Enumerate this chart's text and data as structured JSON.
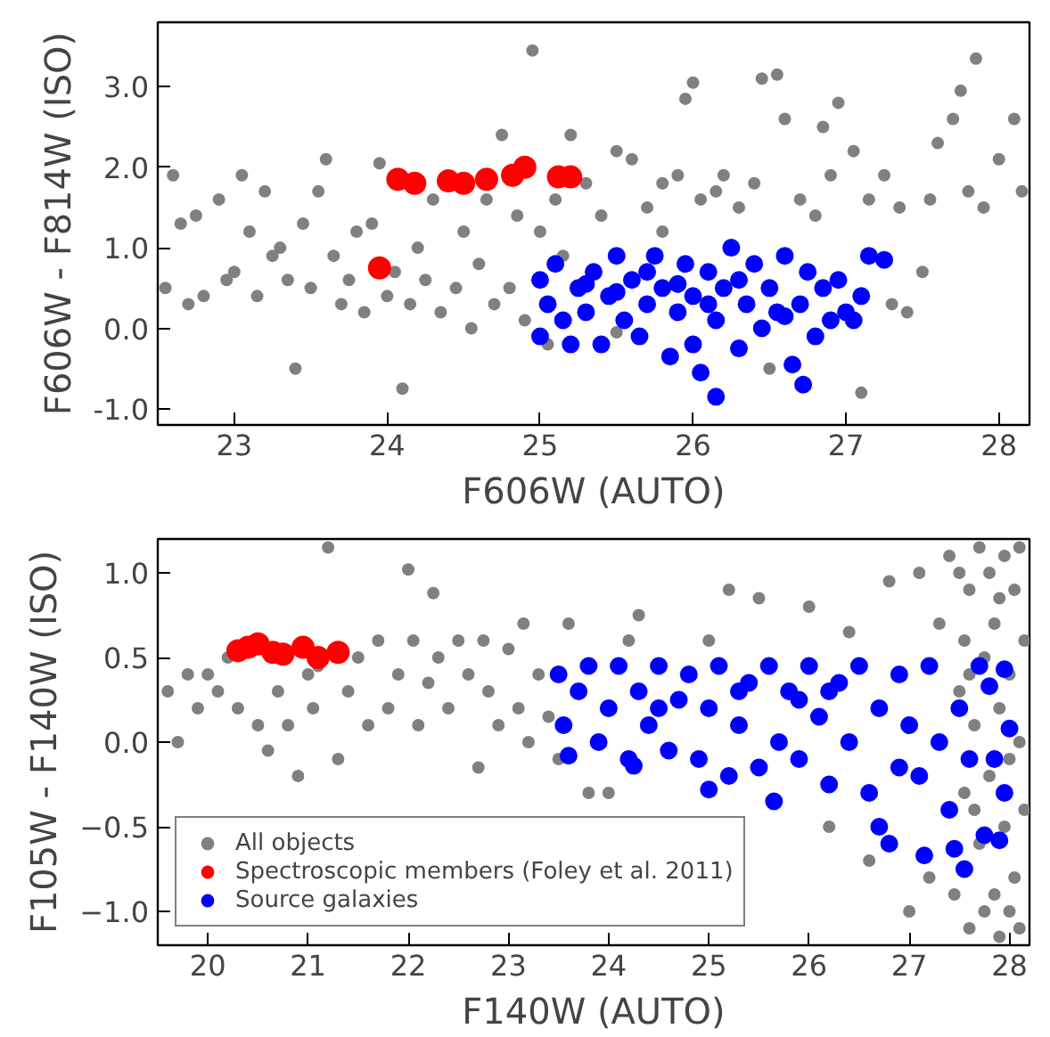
{
  "chart_data": [
    {
      "type": "scatter",
      "xlabel": "F606W (AUTO)",
      "ylabel": "F606W - F814W (ISO)",
      "xlim": [
        22.5,
        28.2
      ],
      "ylim": [
        -1.2,
        3.8
      ],
      "xticks": [
        23,
        24,
        25,
        26,
        27,
        28
      ],
      "yticks": [
        {
          "value": -1,
          "label": "-1.0"
        },
        {
          "value": 0,
          "label": "0.0"
        },
        {
          "value": 1,
          "label": "1.0"
        },
        {
          "value": 2,
          "label": "2.0"
        },
        {
          "value": 3,
          "label": "3.0"
        }
      ],
      "grid": false,
      "legend": false,
      "marker": "circle",
      "series": [
        {
          "color": "#808080",
          "x": [
            22.55,
            22.6,
            22.65,
            22.7,
            22.75,
            22.8,
            22.9,
            22.95,
            23.0,
            23.05,
            23.1,
            23.15,
            23.2,
            23.25,
            23.3,
            23.35,
            23.4,
            23.45,
            23.5,
            23.55,
            23.6,
            23.65,
            23.7,
            23.75,
            23.8,
            23.85,
            23.9,
            23.95,
            24.0,
            24.05,
            24.1,
            24.15,
            24.2,
            24.25,
            24.3,
            24.35,
            24.45,
            24.5,
            24.55,
            24.6,
            24.65,
            24.7,
            24.75,
            24.8,
            24.85,
            24.9,
            24.95,
            25.0,
            25.05,
            25.1,
            25.15,
            25.2,
            25.3,
            25.4,
            25.5,
            25.6,
            25.7,
            25.8,
            25.9,
            25.95,
            26.0,
            26.05,
            26.15,
            26.2,
            26.3,
            26.4,
            26.45,
            26.55,
            26.6,
            26.7,
            26.8,
            26.85,
            26.9,
            26.95,
            27.05,
            27.1,
            27.15,
            27.25,
            27.3,
            27.35,
            27.4,
            27.5,
            27.55,
            27.6,
            27.7,
            27.75,
            27.8,
            27.85,
            27.9,
            28.0,
            28.1,
            28.15,
            26.5,
            25.5,
            25.8
          ],
          "values": [
            0.5,
            1.9,
            1.3,
            0.3,
            1.4,
            0.4,
            1.6,
            0.6,
            0.7,
            1.9,
            1.2,
            0.4,
            1.7,
            0.9,
            1.0,
            0.6,
            -0.5,
            1.3,
            0.5,
            1.7,
            2.1,
            0.9,
            0.3,
            0.6,
            1.2,
            0.2,
            1.3,
            2.05,
            0.4,
            0.7,
            -0.75,
            0.3,
            1.0,
            0.6,
            1.6,
            0.2,
            0.5,
            1.2,
            0.0,
            0.8,
            1.6,
            0.3,
            2.4,
            0.5,
            1.4,
            0.1,
            3.45,
            1.2,
            -0.2,
            1.6,
            0.9,
            2.4,
            1.8,
            1.4,
            2.2,
            2.1,
            1.5,
            1.8,
            1.9,
            2.85,
            3.05,
            1.6,
            1.7,
            1.9,
            1.5,
            1.8,
            3.1,
            3.15,
            2.6,
            1.6,
            1.4,
            2.5,
            1.9,
            2.8,
            2.2,
            -0.8,
            1.6,
            1.9,
            0.3,
            1.5,
            0.2,
            0.7,
            1.6,
            2.3,
            2.6,
            2.95,
            1.7,
            3.35,
            1.5,
            2.1,
            2.6,
            1.7,
            -0.5,
            -0.05,
            1.2
          ]
        },
        {
          "color": "#0000ff",
          "x": [
            25.0,
            25.0,
            25.05,
            25.1,
            25.15,
            25.2,
            25.25,
            25.3,
            25.35,
            25.4,
            25.45,
            25.5,
            25.55,
            25.6,
            25.65,
            25.7,
            25.75,
            25.8,
            25.85,
            25.9,
            25.95,
            26.0,
            26.0,
            26.05,
            26.1,
            26.15,
            26.15,
            26.2,
            26.25,
            26.3,
            26.35,
            26.4,
            26.45,
            26.5,
            26.55,
            26.6,
            26.65,
            26.7,
            26.72,
            26.75,
            26.8,
            26.85,
            26.9,
            26.95,
            27.0,
            27.05,
            27.1,
            27.15,
            27.25,
            25.5,
            25.9,
            26.3,
            26.1,
            25.3,
            26.6,
            25.7
          ],
          "values": [
            0.6,
            -0.1,
            0.3,
            0.8,
            0.1,
            -0.2,
            0.5,
            0.2,
            0.7,
            -0.2,
            0.4,
            0.9,
            0.1,
            0.6,
            -0.1,
            0.3,
            0.9,
            0.5,
            -0.35,
            0.2,
            0.8,
            0.4,
            -0.2,
            -0.55,
            0.7,
            0.1,
            -0.85,
            0.5,
            1.0,
            -0.25,
            0.3,
            0.8,
            0.0,
            0.5,
            0.2,
            0.9,
            -0.45,
            0.3,
            -0.7,
            0.7,
            -0.1,
            0.5,
            0.1,
            0.6,
            0.2,
            0.1,
            0.4,
            0.9,
            0.85,
            0.45,
            0.55,
            0.6,
            0.3,
            0.55,
            0.15,
            0.7
          ]
        },
        {
          "color": "#ff0000",
          "x": [
            23.95,
            24.07,
            24.18,
            24.4,
            24.5,
            24.65,
            24.82,
            24.9,
            25.12,
            25.2
          ],
          "values": [
            0.75,
            1.85,
            1.8,
            1.83,
            1.8,
            1.85,
            1.9,
            2.0,
            1.88,
            1.88
          ]
        }
      ]
    },
    {
      "type": "scatter",
      "xlabel": "F140W (AUTO)",
      "ylabel": "F105W - F140W (ISO)",
      "xlim": [
        19.5,
        28.2
      ],
      "ylim": [
        -1.2,
        1.2
      ],
      "xticks": [
        20,
        21,
        22,
        23,
        24,
        25,
        26,
        27,
        28
      ],
      "yticks": [
        {
          "value": -1,
          "label": "−1.0"
        },
        {
          "value": -0.5,
          "label": "−0.5"
        },
        {
          "value": 0,
          "label": "0.0"
        },
        {
          "value": 0.5,
          "label": "0.5"
        },
        {
          "value": 1,
          "label": "1.0"
        }
      ],
      "grid": false,
      "legend": "bottom left",
      "marker": "circle",
      "series": [
        {
          "name": "All objects",
          "color": "#808080",
          "x": [
            19.6,
            19.7,
            19.8,
            19.9,
            20.0,
            20.1,
            20.2,
            20.3,
            20.5,
            20.6,
            20.7,
            20.8,
            20.9,
            21.0,
            21.05,
            21.1,
            21.2,
            21.3,
            21.4,
            21.5,
            21.6,
            21.7,
            21.8,
            21.9,
            22.0,
            22.05,
            22.1,
            22.2,
            22.25,
            22.3,
            22.4,
            22.5,
            22.6,
            22.7,
            22.75,
            22.8,
            22.9,
            23.0,
            23.1,
            23.15,
            23.2,
            23.3,
            23.4,
            23.5,
            23.6,
            23.8,
            24.0,
            24.2,
            24.3,
            25.0,
            25.2,
            25.5,
            26.0,
            26.2,
            26.4,
            26.6,
            26.8,
            27.0,
            27.1,
            27.2,
            27.3,
            27.4,
            27.45,
            27.5,
            27.55,
            27.6,
            27.6,
            27.65,
            27.7,
            27.7,
            27.75,
            27.8,
            27.8,
            27.85,
            27.85,
            27.9,
            27.9,
            27.95,
            27.95,
            28.0,
            28.0,
            28.05,
            28.05,
            28.1,
            28.1,
            28.1,
            28.15,
            28.15,
            27.55,
            27.65,
            27.75,
            27.9,
            28.0,
            27.5,
            27.6
          ],
          "values": [
            0.3,
            0.0,
            0.4,
            0.2,
            0.4,
            0.3,
            0.5,
            0.2,
            0.1,
            -0.05,
            0.3,
            0.1,
            -0.2,
            0.4,
            0.2,
            0.45,
            1.15,
            -0.1,
            0.3,
            0.5,
            0.1,
            0.6,
            0.2,
            0.4,
            1.02,
            0.6,
            0.1,
            0.35,
            0.88,
            0.5,
            0.2,
            0.6,
            0.4,
            -0.15,
            0.6,
            0.3,
            0.1,
            0.55,
            0.2,
            0.7,
            0.0,
            0.4,
            0.15,
            -0.1,
            0.7,
            -0.3,
            -0.3,
            0.6,
            0.75,
            0.6,
            0.9,
            0.85,
            0.8,
            -0.5,
            0.65,
            -0.7,
            0.95,
            -1.0,
            1.0,
            -0.8,
            0.7,
            1.1,
            -0.9,
            0.3,
            -0.3,
            0.9,
            -1.1,
            0.1,
            1.15,
            -0.6,
            0.5,
            -0.2,
            1.0,
            0.7,
            -0.9,
            0.2,
            -1.15,
            1.1,
            -0.5,
            0.4,
            -0.1,
            0.9,
            -0.8,
            1.15,
            0.0,
            -1.1,
            0.6,
            -0.4,
            0.6,
            -0.4,
            -1.0,
            0.85,
            -1.0,
            1.0,
            0.4
          ]
        },
        {
          "name": "Spectroscopic members (Foley et al. 2011)",
          "color": "#ff0000",
          "x": [
            20.3,
            20.4,
            20.5,
            20.65,
            20.75,
            20.95,
            21.1,
            21.3
          ],
          "values": [
            0.54,
            0.56,
            0.58,
            0.53,
            0.52,
            0.56,
            0.5,
            0.53
          ]
        },
        {
          "name": "Source galaxies",
          "color": "#0000ff",
          "x": [
            23.5,
            23.55,
            23.6,
            23.7,
            23.8,
            23.9,
            24.0,
            24.1,
            24.2,
            24.25,
            24.3,
            24.4,
            24.5,
            24.6,
            24.7,
            24.8,
            24.9,
            25.0,
            25.0,
            25.1,
            25.2,
            25.3,
            25.4,
            25.5,
            25.6,
            25.65,
            25.7,
            25.8,
            25.9,
            26.0,
            26.1,
            26.2,
            26.3,
            26.4,
            26.5,
            26.6,
            26.7,
            26.7,
            26.8,
            26.9,
            27.0,
            27.1,
            27.15,
            27.2,
            27.3,
            27.4,
            27.45,
            27.5,
            27.55,
            27.6,
            27.7,
            27.75,
            27.8,
            27.85,
            27.9,
            27.95,
            27.95,
            28.0,
            26.2,
            25.3,
            24.5,
            26.9,
            25.9
          ],
          "values": [
            0.4,
            0.1,
            -0.08,
            0.3,
            0.45,
            0.0,
            0.2,
            0.45,
            -0.1,
            -0.14,
            0.3,
            0.1,
            0.45,
            -0.05,
            0.25,
            0.4,
            -0.1,
            0.2,
            -0.28,
            0.45,
            -0.2,
            0.1,
            0.35,
            -0.15,
            0.45,
            -0.35,
            0.0,
            0.3,
            -0.1,
            0.45,
            0.15,
            -0.25,
            0.35,
            0.0,
            0.45,
            -0.3,
            0.2,
            -0.5,
            -0.6,
            0.4,
            0.1,
            -0.2,
            -0.67,
            0.45,
            0.0,
            -0.4,
            -0.63,
            0.2,
            -0.75,
            -0.1,
            0.45,
            -0.55,
            0.33,
            -0.1,
            -0.58,
            0.43,
            -0.3,
            0.08,
            0.3,
            0.3,
            0.2,
            -0.15,
            0.25
          ]
        }
      ]
    }
  ]
}
